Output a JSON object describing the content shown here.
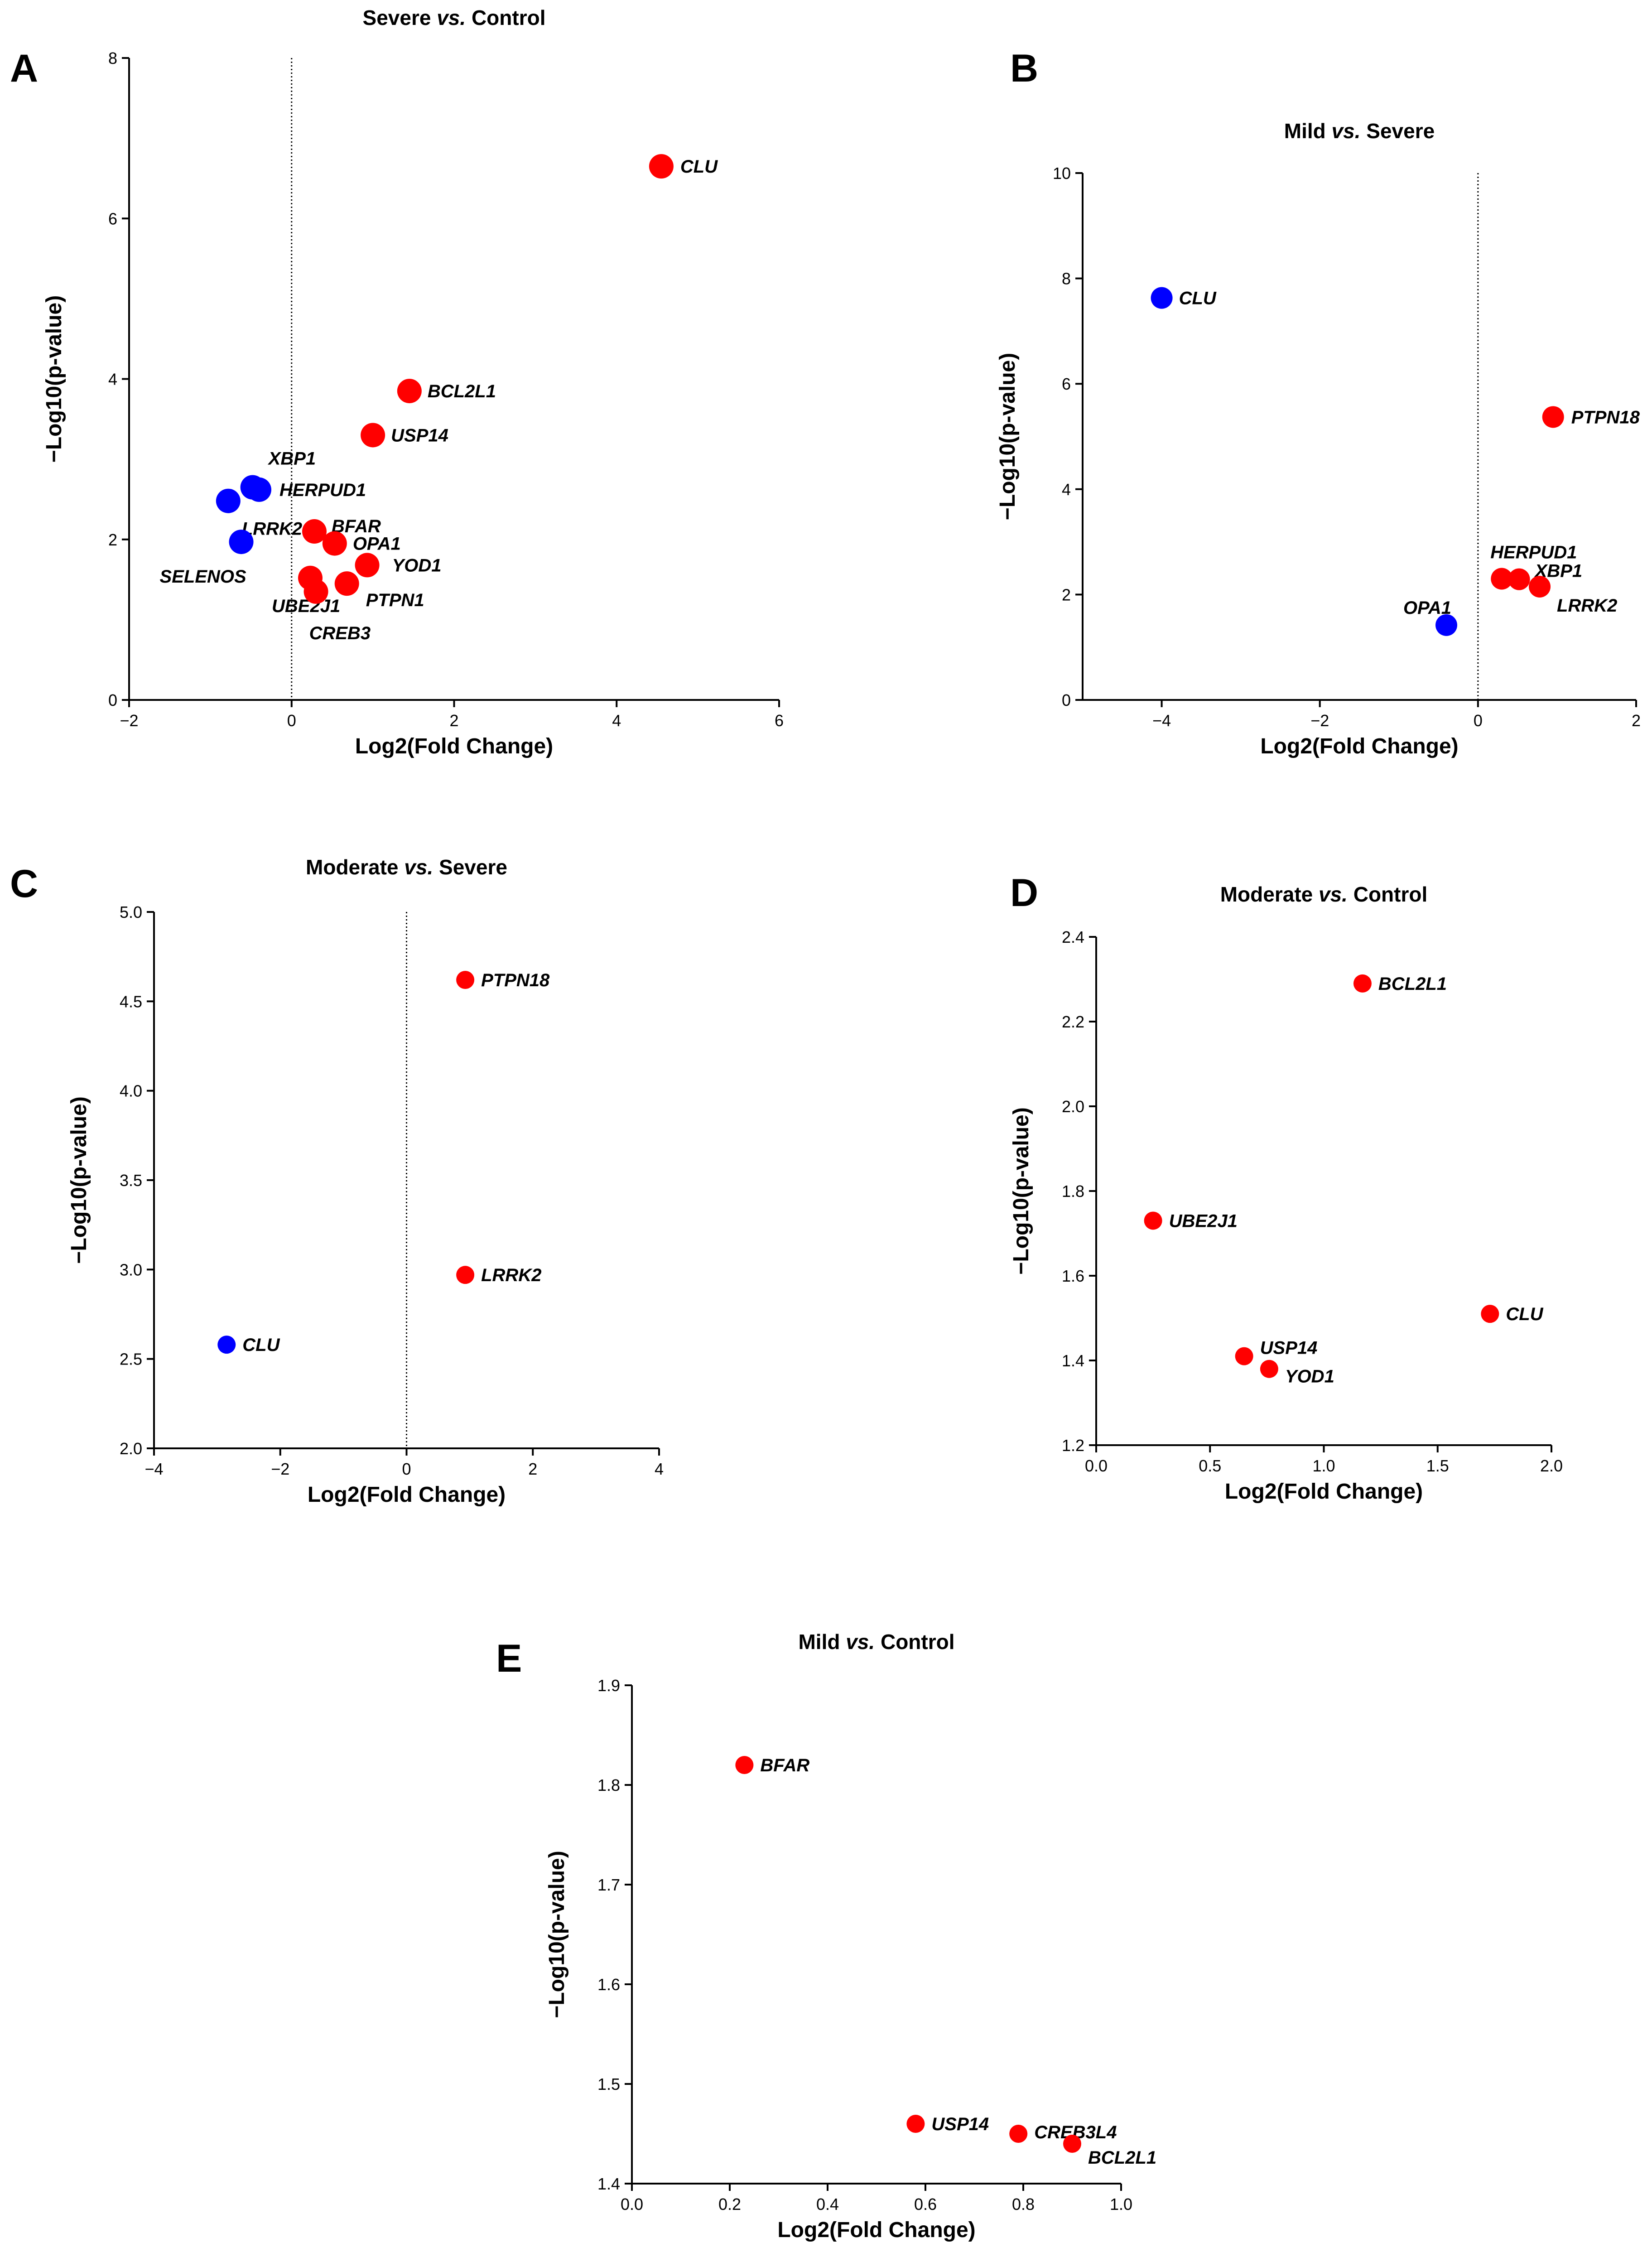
{
  "colors": {
    "up": "#ff0000",
    "down": "#0000ff",
    "axis": "#000000"
  },
  "chart_data": [
    {
      "panel": "A",
      "type": "scatter",
      "title": {
        "pre": "Severe ",
        "em": "vs.",
        "post": " Control"
      },
      "xlabel": "Log2(Fold Change)",
      "ylabel": "−Log10(p-value)",
      "xlim": [
        -2,
        6
      ],
      "ylim": [
        0,
        8
      ],
      "xticks": [
        "−2",
        "0",
        "2",
        "4",
        "6"
      ],
      "yticks": [
        "0",
        "2",
        "4",
        "6",
        "8"
      ],
      "zero_line": true,
      "points": [
        {
          "gene": "CLU",
          "x": 4.55,
          "y": 6.65,
          "dir": "up"
        },
        {
          "gene": "BCL2L1",
          "x": 1.45,
          "y": 3.85,
          "dir": "up"
        },
        {
          "gene": "USP14",
          "x": 1.0,
          "y": 3.3,
          "dir": "up"
        },
        {
          "gene": "BFAR",
          "x": 0.28,
          "y": 2.1,
          "dir": "up"
        },
        {
          "gene": "OPA1",
          "x": 0.53,
          "y": 1.95,
          "dir": "up"
        },
        {
          "gene": "YOD1",
          "x": 0.93,
          "y": 1.68,
          "dir": "up"
        },
        {
          "gene": "UBE2J1",
          "x": 0.23,
          "y": 1.52,
          "dir": "up"
        },
        {
          "gene": "PTPN1",
          "x": 0.68,
          "y": 1.45,
          "dir": "up"
        },
        {
          "gene": "CREB3",
          "x": 0.3,
          "y": 1.35,
          "dir": "up"
        },
        {
          "gene": "XBP1",
          "x": -0.48,
          "y": 2.65,
          "dir": "down"
        },
        {
          "gene": "HERPUD1",
          "x": -0.4,
          "y": 2.62,
          "dir": "down"
        },
        {
          "gene": "LRRK2",
          "x": -0.78,
          "y": 2.48,
          "dir": "down"
        },
        {
          "gene": "SELENOS",
          "x": -0.62,
          "y": 1.97,
          "dir": "down"
        }
      ]
    },
    {
      "panel": "B",
      "type": "scatter",
      "title": {
        "pre": "Mild ",
        "em": "vs.",
        "post": " Severe"
      },
      "xlabel": "Log2(Fold Change)",
      "ylabel": "−Log10(p-value)",
      "xlim": [
        -5,
        2
      ],
      "ylim": [
        0,
        10
      ],
      "xticks": [
        "−4",
        "−2",
        "0",
        "2"
      ],
      "xtick_values": [
        -4,
        -2,
        0,
        2
      ],
      "yticks": [
        "0",
        "2",
        "4",
        "6",
        "8",
        "10"
      ],
      "zero_line": true,
      "points": [
        {
          "gene": "CLU",
          "x": -4.0,
          "y": 7.63,
          "dir": "down"
        },
        {
          "gene": "PTPN18",
          "x": 0.95,
          "y": 5.37,
          "dir": "up"
        },
        {
          "gene": "HERPUD1",
          "x": 0.3,
          "y": 2.3,
          "dir": "up"
        },
        {
          "gene": "XBP1",
          "x": 0.52,
          "y": 2.29,
          "dir": "up"
        },
        {
          "gene": "LRRK2",
          "x": 0.78,
          "y": 2.15,
          "dir": "up"
        },
        {
          "gene": "OPA1",
          "x": -0.4,
          "y": 1.42,
          "dir": "down"
        }
      ]
    },
    {
      "panel": "C",
      "type": "scatter",
      "title": {
        "pre": "Moderate ",
        "em": "vs.",
        "post": " Severe"
      },
      "xlabel": "Log2(Fold Change)",
      "ylabel": "−Log10(p-value)",
      "xlim": [
        -4,
        4
      ],
      "ylim": [
        2.0,
        5.0
      ],
      "xticks": [
        "−4",
        "−2",
        "0",
        "2",
        "4"
      ],
      "yticks": [
        "2.0",
        "2.5",
        "3.0",
        "3.5",
        "4.0",
        "4.5",
        "5.0"
      ],
      "zero_line": true,
      "points": [
        {
          "gene": "PTPN18",
          "x": 0.93,
          "y": 4.62,
          "dir": "up"
        },
        {
          "gene": "LRRK2",
          "x": 0.93,
          "y": 2.97,
          "dir": "up"
        },
        {
          "gene": "CLU",
          "x": -2.85,
          "y": 2.58,
          "dir": "down"
        }
      ]
    },
    {
      "panel": "D",
      "type": "scatter",
      "title": {
        "pre": "Moderate ",
        "em": "vs.",
        "post": " Control"
      },
      "xlabel": "Log2(Fold Change)",
      "ylabel": "−Log10(p-value)",
      "xlim": [
        0,
        2.0
      ],
      "ylim": [
        1.2,
        2.4
      ],
      "xticks": [
        "0.0",
        "0.5",
        "1.0",
        "1.5",
        "2.0"
      ],
      "yticks": [
        "1.2",
        "1.4",
        "1.6",
        "1.8",
        "2.0",
        "2.2",
        "2.4"
      ],
      "zero_line": false,
      "points": [
        {
          "gene": "BCL2L1",
          "x": 1.17,
          "y": 2.29,
          "dir": "up"
        },
        {
          "gene": "UBE2J1",
          "x": 0.25,
          "y": 1.73,
          "dir": "up"
        },
        {
          "gene": "CLU",
          "x": 1.73,
          "y": 1.51,
          "dir": "up"
        },
        {
          "gene": "USP14",
          "x": 0.65,
          "y": 1.41,
          "dir": "up"
        },
        {
          "gene": "YOD1",
          "x": 0.76,
          "y": 1.38,
          "dir": "up"
        }
      ]
    },
    {
      "panel": "E",
      "type": "scatter",
      "title": {
        "pre": "Mild ",
        "em": "vs.",
        "post": " Control"
      },
      "xlabel": "Log2(Fold Change)",
      "ylabel": "−Log10(p-value)",
      "xlim": [
        0,
        1.0
      ],
      "ylim": [
        1.4,
        1.9
      ],
      "xticks": [
        "0.0",
        "0.2",
        "0.4",
        "0.6",
        "0.8",
        "1.0"
      ],
      "yticks": [
        "1.4",
        "1.5",
        "1.6",
        "1.7",
        "1.8",
        "1.9"
      ],
      "zero_line": false,
      "points": [
        {
          "gene": "BFAR",
          "x": 0.23,
          "y": 1.82,
          "dir": "up"
        },
        {
          "gene": "USP14",
          "x": 0.58,
          "y": 1.46,
          "dir": "up"
        },
        {
          "gene": "CREB3L4",
          "x": 0.79,
          "y": 1.45,
          "dir": "up"
        },
        {
          "gene": "BCL2L1",
          "x": 0.9,
          "y": 1.44,
          "dir": "up"
        }
      ]
    }
  ]
}
